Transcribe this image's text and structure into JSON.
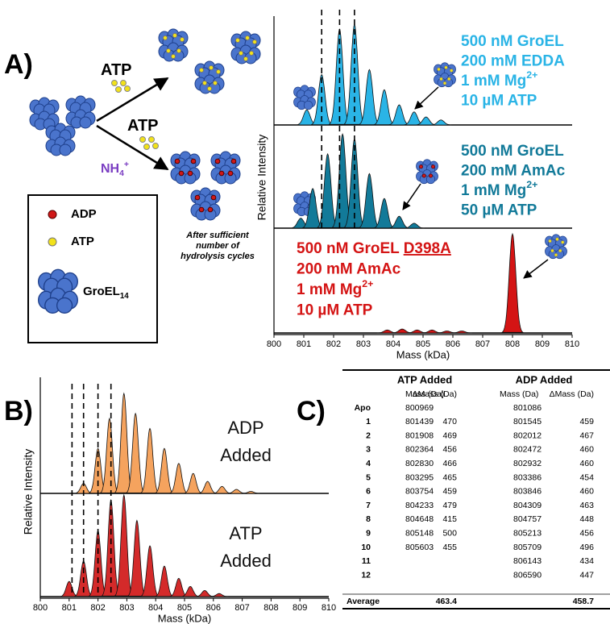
{
  "panel_labels": [
    "A)",
    "B)",
    "C)"
  ],
  "diagram": {
    "arrow_labels": [
      {
        "text": "ATP"
      },
      {
        "text": "ATP"
      },
      {
        "text": "NH",
        "sub": "4",
        "sup": "+"
      }
    ],
    "caption": [
      "After sufficient",
      "number of",
      "hydrolysis cycles"
    ],
    "legend": [
      {
        "text": "ADP"
      },
      {
        "text": "ATP"
      },
      {
        "text": "GroEL",
        "sub": "14"
      }
    ]
  },
  "chart_data": [
    {
      "type": "spectrum",
      "xlabel": "Mass (kDa)",
      "ylabel": "Relative Intensity",
      "xlim": [
        800,
        810
      ],
      "xticks": [
        800,
        801,
        802,
        803,
        804,
        805,
        806,
        807,
        808,
        809,
        810
      ],
      "ylim": [
        0,
        1
      ],
      "vlines": [
        801.6,
        802.2,
        802.7
      ],
      "series": [
        {
          "color": "#2ab4e6",
          "x": [
            801.1,
            801.6,
            802.2,
            802.7,
            803.2,
            803.7,
            804.2,
            804.7,
            805.1,
            805.6
          ],
          "values": [
            0.15,
            0.5,
            0.95,
            1.0,
            0.55,
            0.35,
            0.2,
            0.13,
            0.08,
            0.05
          ],
          "annotation": [
            {
              "text": "500 nM GroEL"
            },
            {
              "text": "200 mM EDDA"
            },
            {
              "text": "1 mM Mg",
              "sup": "2+"
            },
            {
              "text": "10 µM ATP"
            }
          ]
        },
        {
          "color": "#127a99",
          "x": [
            800.9,
            801.3,
            801.8,
            802.3,
            802.7,
            803.2,
            803.7,
            804.2,
            804.7
          ],
          "values": [
            0.1,
            0.4,
            0.75,
            0.95,
            0.9,
            0.55,
            0.3,
            0.12,
            0.05
          ],
          "annotation": [
            {
              "text": "500 nM GroEL"
            },
            {
              "text": "200 mM AmAc"
            },
            {
              "text": "1 mM Mg",
              "sup": "2+"
            },
            {
              "text": "50 µM ATP"
            }
          ]
        },
        {
          "color": "#d41414",
          "x": [
            803.8,
            804.3,
            804.8,
            805.3,
            805.8,
            806.3,
            808.0
          ],
          "values": [
            0.03,
            0.04,
            0.03,
            0.03,
            0.02,
            0.02,
            1.0
          ],
          "annotation": [
            {
              "text": "500 nM GroEL ",
              "u": "D398A"
            },
            {
              "text": "200 mM AmAc"
            },
            {
              "text": "1 mM Mg",
              "sup": "2+"
            },
            {
              "text": "10 µM ATP"
            }
          ]
        }
      ]
    },
    {
      "type": "spectrum",
      "xlabel": "Mass (kDa)",
      "ylabel": "Relative Intensity",
      "xlim": [
        800,
        810
      ],
      "xticks": [
        800,
        801,
        802,
        803,
        804,
        805,
        806,
        807,
        808,
        809,
        810
      ],
      "ylim": [
        0,
        1
      ],
      "vlines": [
        801.1,
        801.5,
        802.0,
        802.45
      ],
      "series": [
        {
          "color": "#f5a35e",
          "x": [
            801.5,
            802.0,
            802.4,
            802.9,
            803.3,
            803.8,
            804.3,
            804.8,
            805.3,
            805.8,
            806.3,
            806.8,
            807.3
          ],
          "values": [
            0.1,
            0.45,
            0.75,
            1.0,
            0.8,
            0.65,
            0.45,
            0.3,
            0.2,
            0.12,
            0.07,
            0.04,
            0.02
          ],
          "annotation": [
            {
              "text": "ADP"
            },
            {
              "text": "Added"
            }
          ]
        },
        {
          "color": "#d42a2a",
          "x": [
            801.0,
            801.5,
            802.0,
            802.45,
            802.9,
            803.35,
            803.8,
            804.3,
            804.8,
            805.2,
            805.7,
            806.2
          ],
          "values": [
            0.15,
            0.35,
            0.65,
            0.95,
            1.0,
            0.75,
            0.5,
            0.3,
            0.18,
            0.1,
            0.06,
            0.03
          ],
          "annotation": [
            {
              "text": "ATP"
            },
            {
              "text": "Added"
            }
          ]
        }
      ]
    }
  ],
  "table": {
    "groups": [
      "ATP Added",
      "ADP Added"
    ],
    "subheaders": [
      "Mass (Da)",
      "ΔMass (Da)",
      "Mass (Da)",
      "ΔMass (Da)"
    ],
    "rows": [
      [
        "Apo",
        800969,
        null,
        801086,
        null
      ],
      [
        "1",
        801439,
        470,
        801545,
        459
      ],
      [
        "2",
        801908,
        469,
        802012,
        467
      ],
      [
        "3",
        802364,
        456,
        802472,
        460
      ],
      [
        "4",
        802830,
        466,
        802932,
        460
      ],
      [
        "5",
        803295,
        465,
        803386,
        454
      ],
      [
        "6",
        803754,
        459,
        803846,
        460
      ],
      [
        "7",
        804233,
        479,
        804309,
        463
      ],
      [
        "8",
        804648,
        415,
        804757,
        448
      ],
      [
        "9",
        805148,
        500,
        805213,
        456
      ],
      [
        "10",
        805603,
        455,
        805709,
        496
      ],
      [
        "11",
        null,
        null,
        806143,
        434
      ],
      [
        "12",
        null,
        null,
        806590,
        447
      ]
    ],
    "average": [
      "Average",
      463.4,
      458.7
    ]
  }
}
